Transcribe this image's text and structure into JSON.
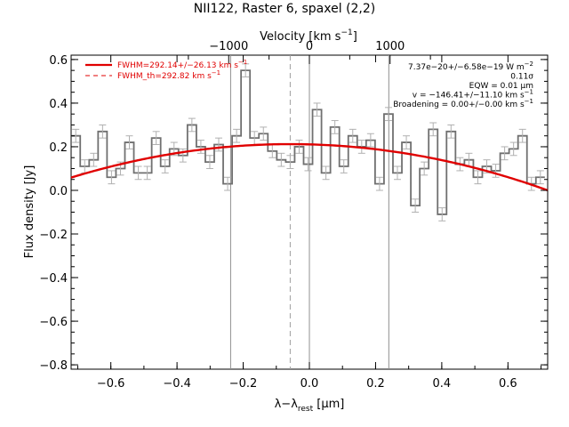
{
  "chart_data": {
    "type": "line",
    "title": "NII122, Raster 6, spaxel (2,2)",
    "xlabel": "λ−λrest [μm]",
    "xlabel_main": "λ−λ",
    "xlabel_sub": "rest",
    "xlabel_unit": " [μm]",
    "ylabel": "Flux density [Jy]",
    "top_xlabel": "Velocity [km s⁻¹]",
    "top_xlabel_main": "Velocity [km s",
    "top_xlabel_sup": "−1",
    "top_xlabel_end": "]",
    "xlim": [
      -0.72,
      0.72
    ],
    "ylim": [
      -0.82,
      0.62
    ],
    "x_ticks": [
      "−0.6",
      "−0.4",
      "−0.2",
      "0.0",
      "0.2",
      "0.4",
      "0.6"
    ],
    "x_tick_values": [
      -0.6,
      -0.4,
      -0.2,
      0.0,
      0.2,
      0.4,
      0.6
    ],
    "y_ticks": [
      "−0.8",
      "−0.6",
      "−0.4",
      "−0.2",
      "0.0",
      "0.2",
      "0.4",
      "0.6"
    ],
    "y_tick_values": [
      -0.8,
      -0.6,
      -0.4,
      -0.2,
      0.0,
      0.2,
      0.4,
      0.6
    ],
    "top_ticks": [
      "−1000",
      "0",
      "1000"
    ],
    "top_tick_values_um": [
      -0.2438,
      0.0,
      0.2438
    ],
    "vertical_lines": {
      "solid": [
        -0.238,
        0.0,
        0.24
      ],
      "dashed": [
        -0.058
      ]
    },
    "legend": {
      "placement": "top-left",
      "entries": [
        {
          "main": "FWHM=292.14+/−26.13 km s",
          "sup": "−1",
          "style": "solid"
        },
        {
          "main": "FWHM_th=292.82 km s",
          "sup": "−1",
          "style": "dashed"
        }
      ]
    },
    "annotations": [
      {
        "main": "7.37e−20+/−6.58e−19 W m",
        "sup": "−2"
      },
      {
        "main": "0.11σ",
        "sup": ""
      },
      {
        "main": "EQW = 0.01 μm",
        "sup": ""
      },
      {
        "main": "v = −146.41+/−11.10 km s",
        "sup": "−1"
      },
      {
        "main": "Broadening = 0.00+/−0.00 km s",
        "sup": "−1"
      }
    ],
    "series": [
      {
        "name": "spectrum",
        "style": "steps",
        "color": "#707070",
        "x": [
          -0.706,
          -0.679,
          -0.652,
          -0.625,
          -0.598,
          -0.571,
          -0.544,
          -0.517,
          -0.49,
          -0.463,
          -0.436,
          -0.409,
          -0.382,
          -0.355,
          -0.328,
          -0.301,
          -0.274,
          -0.247,
          -0.22,
          -0.193,
          -0.166,
          -0.139,
          -0.112,
          -0.085,
          -0.058,
          -0.031,
          -0.004,
          0.023,
          0.05,
          0.077,
          0.104,
          0.131,
          0.158,
          0.185,
          0.212,
          0.239,
          0.266,
          0.293,
          0.32,
          0.347,
          0.374,
          0.401,
          0.428,
          0.455,
          0.482,
          0.509,
          0.536,
          0.563,
          0.59,
          0.617,
          0.644,
          0.671,
          0.698
        ],
        "y": [
          0.25,
          0.11,
          0.14,
          0.27,
          0.06,
          0.1,
          0.22,
          0.08,
          0.08,
          0.24,
          0.11,
          0.19,
          0.16,
          0.3,
          0.2,
          0.13,
          0.21,
          0.03,
          0.25,
          0.55,
          0.24,
          0.26,
          0.18,
          0.14,
          0.13,
          0.2,
          0.12,
          0.37,
          0.08,
          0.29,
          0.11,
          0.25,
          0.2,
          0.23,
          0.03,
          0.35,
          0.08,
          0.22,
          -0.07,
          0.1,
          0.28,
          -0.11,
          0.27,
          0.12,
          0.14,
          0.06,
          0.11,
          0.09,
          0.17,
          0.19,
          0.25,
          0.03,
          0.06
        ],
        "err": 0.03
      },
      {
        "name": "fit",
        "style": "line",
        "color": "#e00000",
        "center": -0.058,
        "peak": 0.212,
        "curvature": 0.35
      }
    ],
    "grid": false
  }
}
